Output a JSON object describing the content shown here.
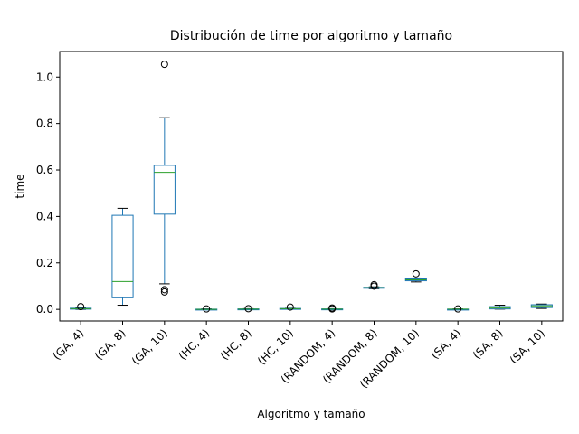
{
  "chart_data": {
    "type": "box",
    "title": "Distribución de time por algoritmo y tamaño",
    "xlabel": "Algoritmo y tamaño",
    "ylabel": "time",
    "ylim": [
      -0.05,
      1.11
    ],
    "yticks": [
      0.0,
      0.2,
      0.4,
      0.6,
      0.8,
      1.0
    ],
    "ytick_labels": [
      "0.0",
      "0.2",
      "0.4",
      "0.6",
      "0.8",
      "1.0"
    ],
    "grid": false,
    "box_color": "#1f77b4",
    "median_color": "#2ca02c",
    "categories": [
      "(GA, 4)",
      "(GA, 8)",
      "(GA, 10)",
      "(HC, 4)",
      "(HC, 8)",
      "(HC, 10)",
      "(RANDOM, 4)",
      "(RANDOM, 8)",
      "(RANDOM, 10)",
      "(SA, 4)",
      "(SA, 8)",
      "(SA, 10)"
    ],
    "boxes": [
      {
        "whislo": 0.0,
        "q1": 0.001,
        "med": 0.003,
        "q3": 0.005,
        "whishi": 0.008,
        "fliers": [
          0.012
        ]
      },
      {
        "whislo": 0.018,
        "q1": 0.05,
        "med": 0.12,
        "q3": 0.405,
        "whishi": 0.435,
        "fliers": []
      },
      {
        "whislo": 0.11,
        "q1": 0.41,
        "med": 0.59,
        "q3": 0.62,
        "whishi": 0.825,
        "fliers": [
          0.085,
          0.075,
          1.055
        ]
      },
      {
        "whislo": 0.0,
        "q1": 0.0,
        "med": 0.0,
        "q3": 0.001,
        "whishi": 0.002,
        "fliers": [
          0.002
        ]
      },
      {
        "whislo": 0.0,
        "q1": 0.0,
        "med": 0.001,
        "q3": 0.002,
        "whishi": 0.003,
        "fliers": [
          0.003
        ]
      },
      {
        "whislo": 0.001,
        "q1": 0.002,
        "med": 0.003,
        "q3": 0.004,
        "whishi": 0.005,
        "fliers": [
          0.01
        ]
      },
      {
        "whislo": 0.0,
        "q1": 0.0,
        "med": 0.001,
        "q3": 0.002,
        "whishi": 0.003,
        "fliers": [
          0.002,
          0.006
        ]
      },
      {
        "whislo": 0.089,
        "q1": 0.091,
        "med": 0.093,
        "q3": 0.095,
        "whishi": 0.097,
        "fliers": [
          0.1,
          0.106
        ]
      },
      {
        "whislo": 0.118,
        "q1": 0.123,
        "med": 0.127,
        "q3": 0.131,
        "whishi": 0.135,
        "fliers": [
          0.153
        ]
      },
      {
        "whislo": 0.0,
        "q1": 0.0,
        "med": 0.001,
        "q3": 0.001,
        "whishi": 0.002,
        "fliers": [
          0.002
        ]
      },
      {
        "whislo": 0.001,
        "q1": 0.002,
        "med": 0.006,
        "q3": 0.012,
        "whishi": 0.018,
        "fliers": []
      },
      {
        "whislo": 0.004,
        "q1": 0.008,
        "med": 0.015,
        "q3": 0.02,
        "whishi": 0.023,
        "fliers": []
      }
    ]
  }
}
